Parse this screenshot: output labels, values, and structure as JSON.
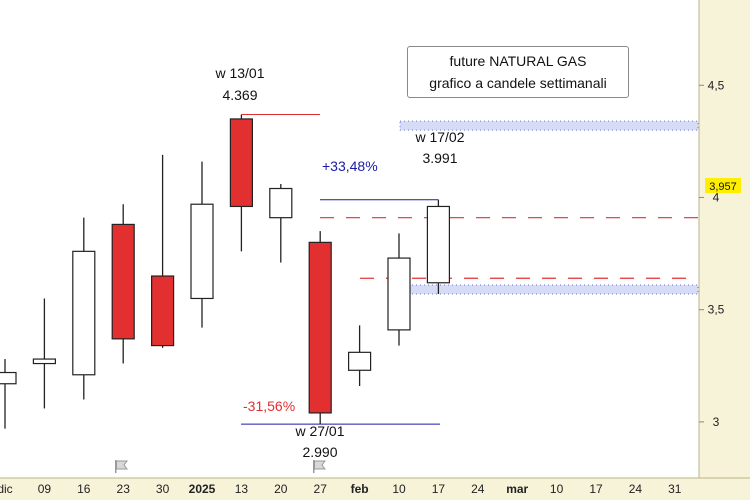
{
  "chart_data": {
    "type": "candlestick",
    "title": "future NATURAL GAS",
    "subtitle": "grafico a candele settimanali",
    "x_tick_labels": [
      "dic",
      "09",
      "16",
      "23",
      "30",
      "2025",
      "13",
      "20",
      "27",
      "feb",
      "10",
      "17",
      "24",
      "mar",
      "10",
      "17",
      "24",
      "31"
    ],
    "y_tick_labels": [
      "3",
      "3,5",
      "4",
      "4,5"
    ],
    "ylim": [
      2.75,
      4.88
    ],
    "candles": [
      {
        "open": 3.17,
        "high": 3.28,
        "low": 2.97,
        "close": 3.22
      },
      {
        "open": 3.26,
        "high": 3.55,
        "low": 3.06,
        "close": 3.28
      },
      {
        "open": 3.21,
        "high": 3.91,
        "low": 3.1,
        "close": 3.76
      },
      {
        "open": 3.88,
        "high": 3.97,
        "low": 3.26,
        "close": 3.37
      },
      {
        "open": 3.65,
        "high": 4.19,
        "low": 3.33,
        "close": 3.34
      },
      {
        "open": 3.55,
        "high": 4.16,
        "low": 3.42,
        "close": 3.97
      },
      {
        "open": 4.35,
        "high": 4.37,
        "low": 3.76,
        "close": 3.96
      },
      {
        "open": 3.91,
        "high": 4.06,
        "low": 3.71,
        "close": 4.04
      },
      {
        "open": 3.8,
        "high": 3.85,
        "low": 2.99,
        "close": 3.04
      },
      {
        "open": 3.23,
        "high": 3.43,
        "low": 3.16,
        "close": 3.31
      },
      {
        "open": 3.41,
        "high": 3.84,
        "low": 3.34,
        "close": 3.73
      },
      {
        "open": 3.62,
        "high": 3.99,
        "low": 3.57,
        "close": 3.96
      }
    ],
    "current_price": "3,957",
    "annotations": {
      "high_label": "w 13/01",
      "high_value": "4.369",
      "low_label": "w 27/01",
      "low_value": "2.990",
      "recent_label": "w 17/02",
      "recent_value": "3.991",
      "drop_pct": "-31,56%",
      "rise_pct": "+33,48%"
    },
    "levels": {
      "dashed_upper": 3.91,
      "dashed_lower": 3.64,
      "zone_upper": [
        4.3,
        4.34
      ],
      "zone_lower": [
        3.57,
        3.61
      ]
    },
    "colors": {
      "bear": "#e23030",
      "bull": "#ffffff",
      "pct_up": "#1a1aa8",
      "pct_down": "#e23030",
      "price_tag": "#ffee00",
      "zone": "#d6dcf6",
      "axis_bg": "#f7f3d8"
    }
  }
}
